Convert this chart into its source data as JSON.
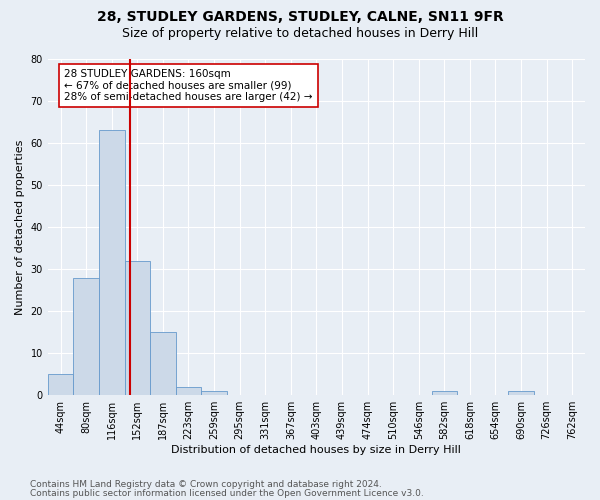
{
  "title": "28, STUDLEY GARDENS, STUDLEY, CALNE, SN11 9FR",
  "subtitle": "Size of property relative to detached houses in Derry Hill",
  "xlabel": "Distribution of detached houses by size in Derry Hill",
  "ylabel": "Number of detached properties",
  "bin_labels": [
    "44sqm",
    "80sqm",
    "116sqm",
    "152sqm",
    "187sqm",
    "223sqm",
    "259sqm",
    "295sqm",
    "331sqm",
    "367sqm",
    "403sqm",
    "439sqm",
    "474sqm",
    "510sqm",
    "546sqm",
    "582sqm",
    "618sqm",
    "654sqm",
    "690sqm",
    "726sqm",
    "762sqm"
  ],
  "bar_values": [
    5,
    28,
    63,
    32,
    15,
    2,
    1,
    0,
    0,
    0,
    0,
    0,
    0,
    0,
    0,
    1,
    0,
    0,
    1,
    0,
    0
  ],
  "bar_color": "#ccd9e8",
  "bar_edge_color": "#6699cc",
  "vline_color": "#cc0000",
  "vline_x_index": 2.72,
  "annotation_text": "28 STUDLEY GARDENS: 160sqm\n← 67% of detached houses are smaller (99)\n28% of semi-detached houses are larger (42) →",
  "annotation_box_facecolor": "#ffffff",
  "annotation_box_edgecolor": "#cc0000",
  "ylim": [
    0,
    80
  ],
  "yticks": [
    0,
    10,
    20,
    30,
    40,
    50,
    60,
    70,
    80
  ],
  "footer_line1": "Contains HM Land Registry data © Crown copyright and database right 2024.",
  "footer_line2": "Contains public sector information licensed under the Open Government Licence v3.0.",
  "bg_color": "#e8eef5",
  "plot_bg_color": "#e8eef5",
  "title_fontsize": 10,
  "subtitle_fontsize": 9,
  "xlabel_fontsize": 8,
  "ylabel_fontsize": 8,
  "tick_fontsize": 7,
  "annotation_fontsize": 7.5,
  "footer_fontsize": 6.5
}
